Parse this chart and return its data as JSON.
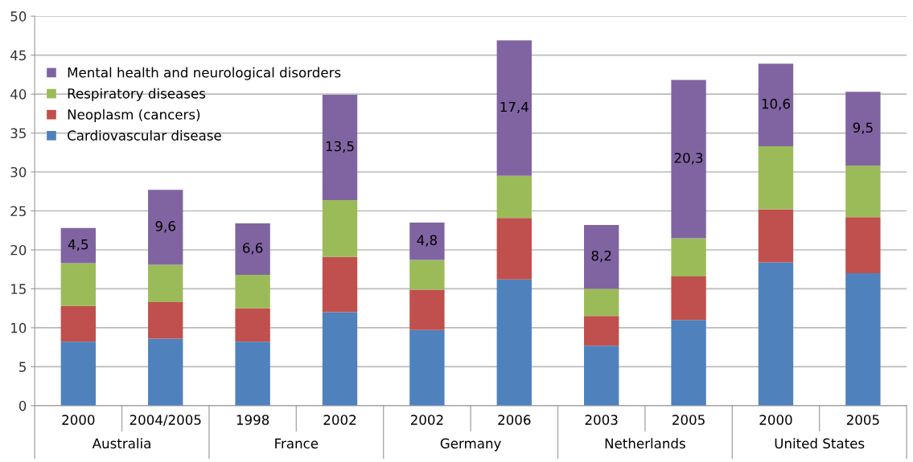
{
  "chart_data": {
    "type": "bar",
    "stacked": true,
    "categories": [
      "2000",
      "2004/2005",
      "1998",
      "2002",
      "2002",
      "2006",
      "2003",
      "2005",
      "2000",
      "2005"
    ],
    "annotations": [
      "Australia",
      "France",
      "Germany",
      "Netherlands",
      "United States"
    ],
    "series": [
      {
        "name": "Cardiovascular disease",
        "color": "#4f81bd",
        "values": [
          8.2,
          8.6,
          8.2,
          12.0,
          9.7,
          16.2,
          7.7,
          11.0,
          18.4,
          17.0
        ]
      },
      {
        "name": "Neoplasm (cancers)",
        "color": "#c0504d",
        "values": [
          4.6,
          4.7,
          4.3,
          7.1,
          5.2,
          7.9,
          3.8,
          5.6,
          6.8,
          7.2
        ]
      },
      {
        "name": "Respiratory diseases",
        "color": "#9bbb59",
        "values": [
          5.5,
          4.8,
          4.3,
          7.3,
          3.8,
          5.4,
          3.5,
          4.9,
          8.1,
          6.6
        ]
      },
      {
        "name": "Mental health and neurological disorders",
        "color": "#8064a2",
        "values": [
          4.5,
          9.6,
          6.6,
          13.5,
          4.8,
          17.4,
          8.2,
          20.3,
          10.6,
          9.5
        ],
        "value_labels": [
          "4,5",
          "9,6",
          "6,6",
          "13,5",
          "4,8",
          "17,4",
          "8,2",
          "20,3",
          "10,6",
          "9,5"
        ]
      }
    ],
    "ylim": [
      0,
      50
    ],
    "yticks": [
      0,
      5,
      10,
      15,
      20,
      25,
      30,
      35,
      40,
      45,
      50
    ],
    "grid": "y",
    "legend": "top left"
  }
}
